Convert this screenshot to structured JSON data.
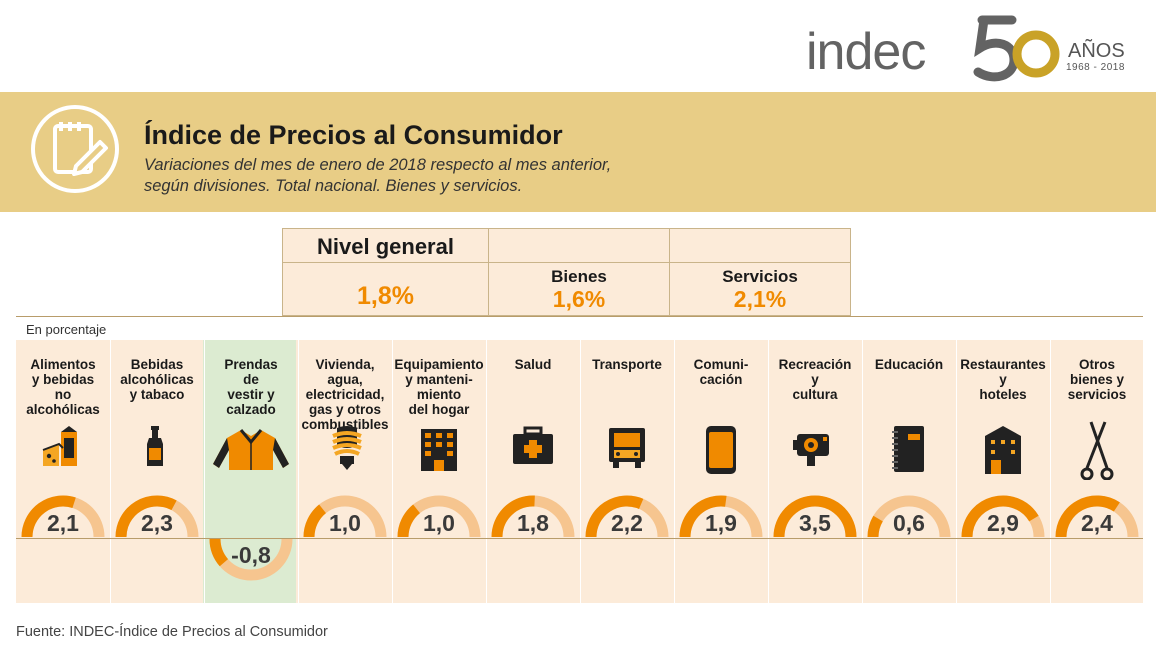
{
  "logo": {
    "word": "indec",
    "big_number": "50",
    "anos": "AÑOS",
    "years": "1968  -  2018"
  },
  "header": {
    "title": "Índice de Precios al Consumidor",
    "subtitle_line1": "Variaciones del mes de enero de 2018 respecto al mes anterior,",
    "subtitle_line2": "según divisiones. Total nacional. Bienes y servicios.",
    "icon": "notepad-pencil-icon"
  },
  "summary": {
    "general": {
      "label": "Nivel general",
      "value": "1,8%"
    },
    "bienes": {
      "label": "Bienes",
      "value": "1,6%"
    },
    "servicios": {
      "label": "Servicios",
      "value": "2,1%"
    }
  },
  "unit_label": "En porcentaje",
  "colors": {
    "accent": "#f08a00",
    "band": "#e8cd86",
    "panel": "#fcebd9",
    "highlight": "#dcebd1"
  },
  "chart_data": {
    "type": "bar",
    "title": "Índice de Precios al Consumidor",
    "ylabel": "En porcentaje",
    "categories": [
      "Alimentos y bebidas no alcohólicas",
      "Bebidas alcohólicas y tabaco",
      "Prendas de vestir y calzado",
      "Vivienda, agua, electricidad, gas y otros combustibles",
      "Equipamiento y mantenimiento del hogar",
      "Salud",
      "Transporte",
      "Comunicación",
      "Recreación y cultura",
      "Educación",
      "Restaurantes y hoteles",
      "Otros bienes y servicios"
    ],
    "values": [
      2.1,
      2.3,
      -0.8,
      1.0,
      1.0,
      1.8,
      2.2,
      1.9,
      3.5,
      0.6,
      2.9,
      2.4
    ],
    "value_labels": [
      "2,1",
      "2,3",
      "-0,8",
      "1,0",
      "1,0",
      "1,8",
      "2,2",
      "1,9",
      "3,5",
      "0,6",
      "2,9",
      "2,4"
    ],
    "highlight_index": 2
  },
  "divisions": [
    {
      "lines": [
        "Alimentos",
        "y bebidas",
        "no",
        "alcohólicas"
      ],
      "icon": "milk-cheese-icon"
    },
    {
      "lines": [
        "Bebidas",
        "alcohólicas",
        "y tabaco"
      ],
      "icon": "bottle-icon"
    },
    {
      "lines": [
        "Prendas",
        "de",
        "vestir y",
        "calzado"
      ],
      "icon": "jacket-icon"
    },
    {
      "lines": [
        "Vivienda,",
        "agua,",
        "electricidad,",
        "gas y otros",
        "combustibles"
      ],
      "icon": "lightbulb-icon"
    },
    {
      "lines": [
        "Equipamiento",
        "y manteni-",
        "miento",
        "del hogar"
      ],
      "icon": "building-icon"
    },
    {
      "lines": [
        "Salud"
      ],
      "icon": "first-aid-kit-icon"
    },
    {
      "lines": [
        "Transporte"
      ],
      "icon": "truck-icon"
    },
    {
      "lines": [
        "Comuni-",
        "cación"
      ],
      "icon": "smartphone-icon"
    },
    {
      "lines": [
        "Recreación",
        "y",
        "cultura"
      ],
      "icon": "camera-icon"
    },
    {
      "lines": [
        "Educación"
      ],
      "icon": "notebook-icon"
    },
    {
      "lines": [
        "Restaurantes",
        "y",
        "hoteles"
      ],
      "icon": "hotel-icon"
    },
    {
      "lines": [
        "Otros",
        "bienes y",
        "servicios"
      ],
      "icon": "scissors-icon"
    }
  ],
  "source": "Fuente: INDEC-Índice de Precios al Consumidor"
}
